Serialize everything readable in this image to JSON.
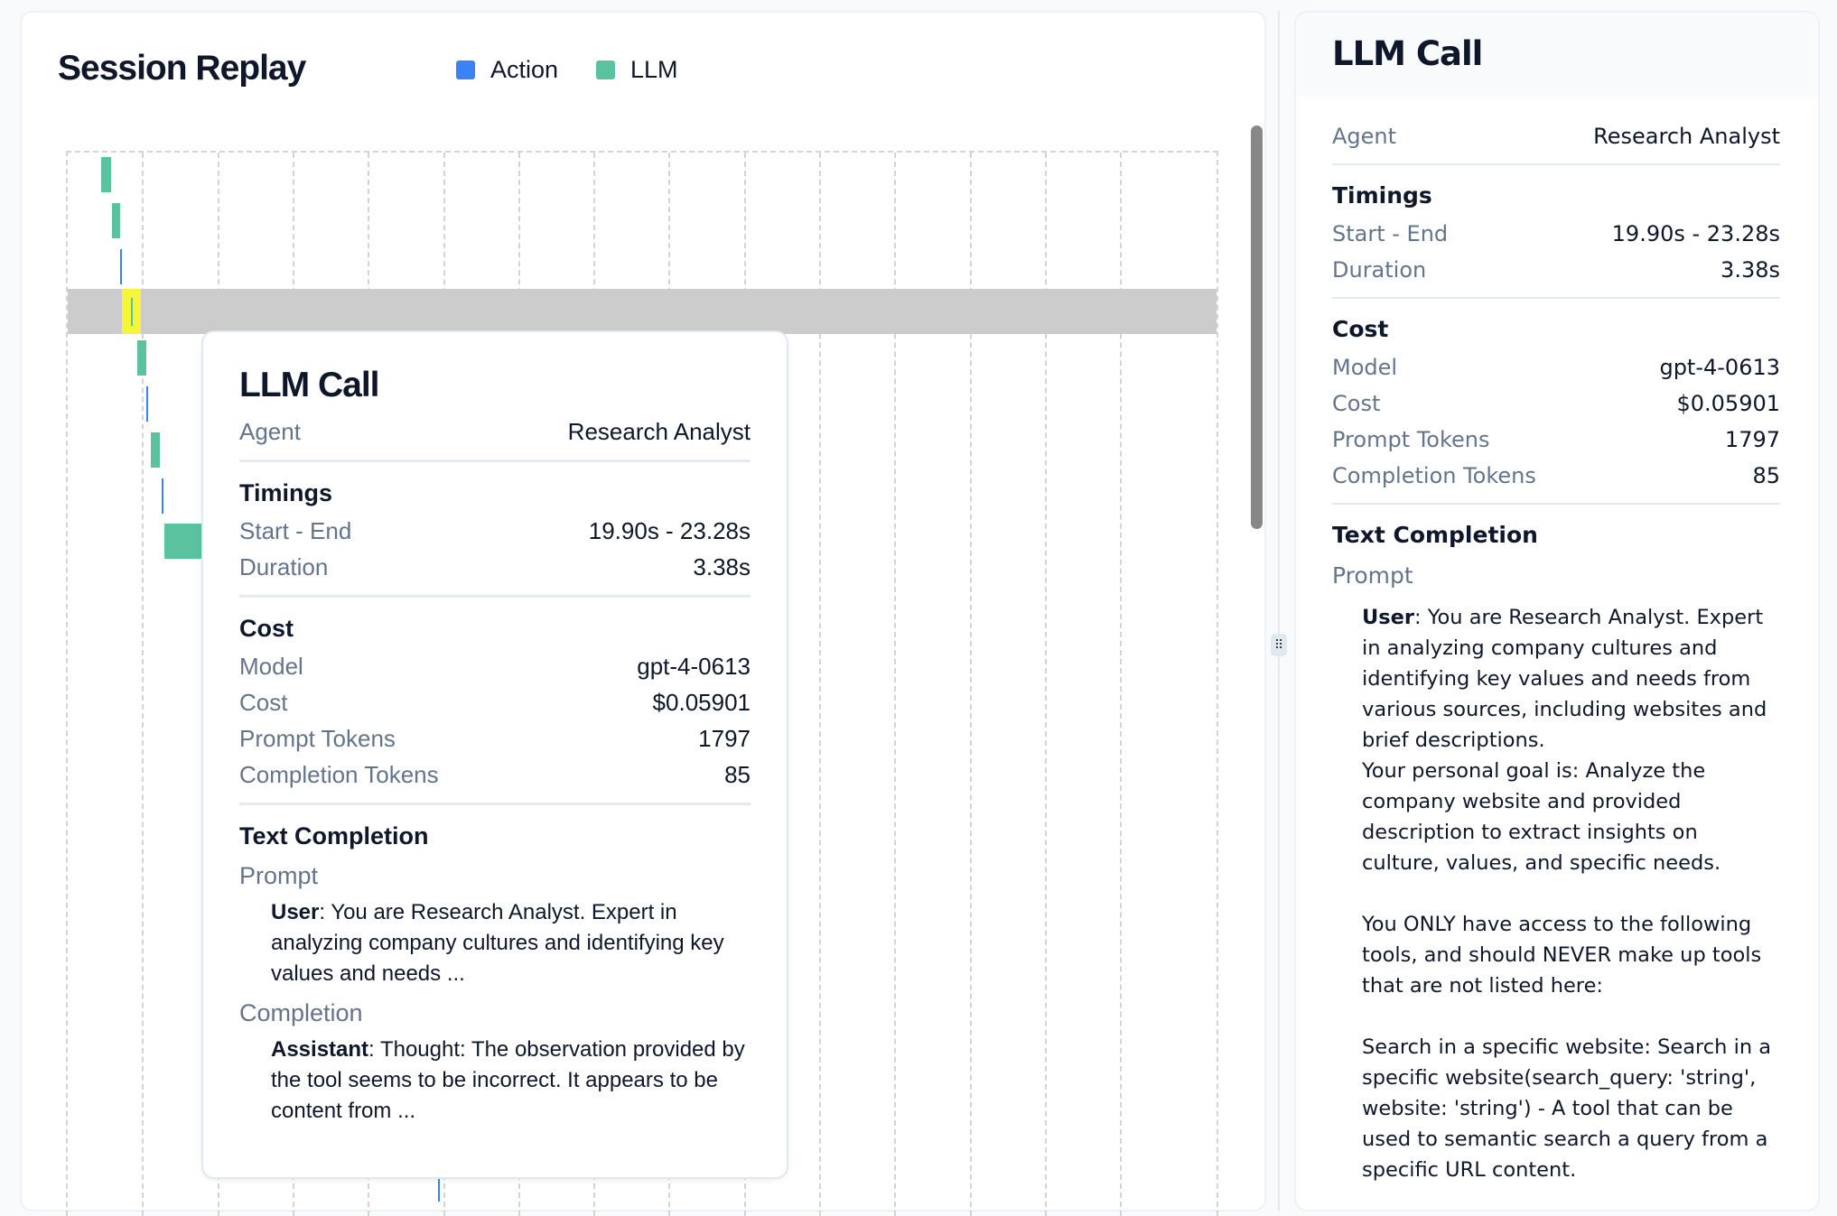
{
  "session_replay": {
    "title": "Session Replay",
    "legend": [
      {
        "label": "Action",
        "color": "#3b82f6"
      },
      {
        "label": "LLM",
        "color": "#5ac29f"
      }
    ],
    "highlight_color": "#f5f53a",
    "selected_row_color": "#cccccc"
  },
  "chart_data": {
    "type": "gantt",
    "xlim": [
      0,
      15
    ],
    "grid": true,
    "selected_row": 3,
    "events": [
      {
        "row": 0,
        "type": "LLM",
        "start": 0.45,
        "end": 0.58
      },
      {
        "row": 1,
        "type": "LLM",
        "start": 0.59,
        "end": 0.7
      },
      {
        "row": 2,
        "type": "Action",
        "start": 0.7,
        "end": 0.71
      },
      {
        "row": 3,
        "type": "LLM",
        "start": 0.84,
        "end": 0.85
      },
      {
        "row": 4,
        "type": "LLM",
        "start": 0.93,
        "end": 1.04
      },
      {
        "row": 5,
        "type": "Action",
        "start": 1.04,
        "end": 1.05
      },
      {
        "row": 6,
        "type": "LLM",
        "start": 1.11,
        "end": 1.23
      },
      {
        "row": 7,
        "type": "Action",
        "start": 1.25,
        "end": 1.26
      },
      {
        "row": 8,
        "type": "LLM",
        "start": 1.28,
        "end": 1.78
      },
      {
        "row": 9,
        "type": "Action",
        "start": 1.78,
        "end": 1.79
      },
      {
        "row": 10,
        "type": "LLM",
        "start": 1.78,
        "end": 1.79
      },
      {
        "row": 22,
        "type": "Action",
        "start": 4.92,
        "end": 4.93
      }
    ]
  },
  "tooltip": {
    "title": "LLM Call",
    "agent_label": "Agent",
    "agent": "Research Analyst",
    "timings_title": "Timings",
    "start_end_label": "Start - End",
    "start_end": "19.90s - 23.28s",
    "duration_label": "Duration",
    "duration": "3.38s",
    "cost_title": "Cost",
    "model_label": "Model",
    "model": "gpt-4-0613",
    "cost_label": "Cost",
    "cost": "$0.05901",
    "prompt_tokens_label": "Prompt Tokens",
    "prompt_tokens": "1797",
    "completion_tokens_label": "Completion Tokens",
    "completion_tokens": "85",
    "text_completion_title": "Text Completion",
    "prompt_label": "Prompt",
    "prompt_role": "User",
    "prompt_text": ": You are Research Analyst. Expert in analyzing company cultures and identifying key values and needs ...",
    "completion_label": "Completion",
    "completion_role": "Assistant",
    "completion_text": ": Thought: The observation provided by the tool seems to be incorrect. It appears to be content from ..."
  },
  "detail_panel": {
    "title": "LLM Call",
    "agent_label": "Agent",
    "agent": "Research Analyst",
    "timings_title": "Timings",
    "start_end_label": "Start - End",
    "start_end": "19.90s - 23.28s",
    "duration_label": "Duration",
    "duration": "3.38s",
    "cost_title": "Cost",
    "model_label": "Model",
    "model": "gpt-4-0613",
    "cost_label": "Cost",
    "cost": "$0.05901",
    "prompt_tokens_label": "Prompt Tokens",
    "prompt_tokens": "1797",
    "completion_tokens_label": "Completion Tokens",
    "completion_tokens": "85",
    "text_completion_title": "Text Completion",
    "prompt_label": "Prompt",
    "prompt_role": "User",
    "prompt_text": ": You are Research Analyst. Expert in analyzing company cultures and identifying key values and needs from various sources, including websites and brief descriptions.\nYour personal goal is: Analyze the company website and provided description to extract insights on culture, values, and specific needs.\n\nYou ONLY have access to the following tools, and should NEVER make up tools that are not listed here:\n\nSearch in a specific website: Search in a specific website(search_query: 'string', website: 'string') - A tool that can be used to semantic search a query from a specific URL content."
  },
  "resize_handle_icon": "grip-dots-icon"
}
